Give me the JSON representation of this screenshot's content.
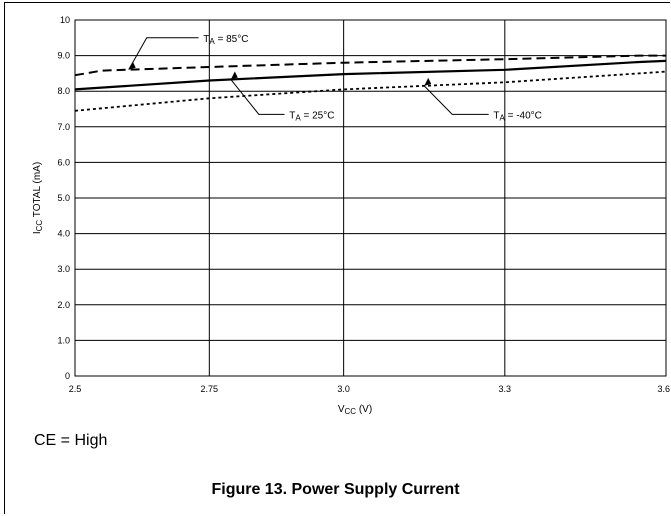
{
  "chart_data": {
    "type": "line",
    "xlabel": {
      "main": "V",
      "sub": "CC",
      "unit": " (V)"
    },
    "ylabel": {
      "main": "I",
      "sub": "CC",
      "rest": " TOTAL (mA)"
    },
    "x_ticks": [
      2.5,
      2.75,
      3.0,
      3.3,
      3.6
    ],
    "x_tick_labels": [
      "2.5",
      "2.75",
      "3.0",
      "3.3",
      "3.6"
    ],
    "y_ticks": [
      0,
      1,
      2,
      3,
      4,
      5,
      6,
      7,
      8,
      9,
      10
    ],
    "y_tick_labels": [
      "0",
      "1.0",
      "2.0",
      "3.0",
      "4.0",
      "5.0",
      "6.0",
      "7.0",
      "8.0",
      "9.0",
      "10"
    ],
    "xlim": [
      2.5,
      3.6
    ],
    "ylim": [
      0,
      10
    ],
    "grid": true,
    "series": [
      {
        "name": "T_A = 85°C",
        "label_main": "T",
        "label_sub": "A",
        "label_rest": " = 85°C",
        "style": "dashed",
        "x": [
          2.5,
          2.55,
          2.75,
          3.0,
          3.3,
          3.55,
          3.6
        ],
        "values": [
          8.45,
          8.58,
          8.68,
          8.8,
          8.9,
          9.0,
          9.0
        ]
      },
      {
        "name": "T_A = 25°C",
        "label_main": "T",
        "label_sub": "A",
        "label_rest": " = 25°C",
        "style": "solid",
        "x": [
          2.5,
          2.75,
          3.0,
          3.3,
          3.55,
          3.6
        ],
        "values": [
          8.05,
          8.3,
          8.48,
          8.6,
          8.82,
          8.85
        ]
      },
      {
        "name": "T_A = -40°C",
        "label_main": "T",
        "label_sub": "A",
        "label_rest": " = -40°C",
        "style": "dotted",
        "x": [
          2.5,
          2.75,
          3.0,
          3.3,
          3.55,
          3.6
        ],
        "values": [
          7.45,
          7.8,
          8.05,
          8.25,
          8.5,
          8.55
        ]
      }
    ]
  },
  "note": "CE = High",
  "caption": "Figure 13. Power Supply Current"
}
